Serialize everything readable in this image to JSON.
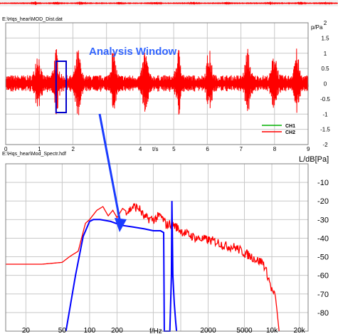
{
  "chart_data": [
    {
      "type": "line",
      "file_label": "E:\\Hqs_hear\\MOD_Dist.dat",
      "ylabel": "p/Pa",
      "xlabel": "t/s",
      "annotation": "Analysis Window",
      "xlim": [
        0,
        9
      ],
      "ylim": [
        -2,
        2
      ],
      "x_ticks": [
        "0",
        "1",
        "2",
        "4",
        "5",
        "6",
        "7",
        "8",
        "9"
      ],
      "y_ticks": [
        "2",
        "1.5",
        "1",
        "0.5",
        "0",
        "-0.5",
        "-1",
        "-1.5",
        "-2"
      ],
      "window": [
        1.5,
        1.8
      ],
      "grid": true,
      "legend_placement": "bottom-right",
      "series": [
        {
          "name": "CH1",
          "color": "#00b000",
          "bursts": [
            0.95,
            1.5,
            2.15,
            3.2,
            4.15,
            5.15,
            6.05,
            7.2,
            8.0,
            8.65
          ]
        },
        {
          "name": "CH2",
          "color": "#ff0000",
          "bursts": [
            0.95,
            1.5,
            2.15,
            3.2,
            4.15,
            5.15,
            6.05,
            7.2,
            8.0,
            8.65
          ]
        }
      ]
    },
    {
      "type": "line",
      "file_label": "E:\\Hqs_hear\\Mod_Spectr.hdf",
      "ylabel": "L/dB[Pa]",
      "xlabel": "f/Hz",
      "xscale": "log",
      "xlim": [
        12,
        25000
      ],
      "ylim": [
        -90,
        0
      ],
      "x_ticks": [
        "20",
        "50",
        "100",
        "200",
        "2000",
        "5000",
        "10k",
        "20k"
      ],
      "y_ticks": [
        "-10",
        "-20",
        "-30",
        "-40",
        "-50",
        "-60",
        "-70",
        "-80"
      ],
      "grid": true,
      "series": [
        {
          "color": "#ff0000",
          "x": [
            12,
            20,
            30,
            50,
            60,
            75,
            90,
            100,
            120,
            140,
            160,
            180,
            200,
            230,
            260,
            300,
            350,
            400,
            500,
            600,
            700,
            800,
            1000,
            1200,
            1500,
            2000,
            2500,
            3000,
            4000,
            5000,
            6000,
            7000,
            8000,
            9000,
            10000,
            11000,
            12000
          ],
          "y": [
            -54,
            -54,
            -54,
            -53,
            -50,
            -47,
            -32,
            -30,
            -25,
            -23,
            -28,
            -25,
            -29,
            -24,
            -26,
            -23,
            -24,
            -29,
            -30,
            -28,
            -33,
            -32,
            -36,
            -38,
            -40,
            -41,
            -42,
            -44,
            -45,
            -48,
            -50,
            -52,
            -53,
            -60,
            -68,
            -72,
            -90
          ]
        },
        {
          "color": "#0000ff",
          "x": [
            55,
            70,
            85,
            100,
            110,
            130,
            170,
            220,
            300,
            400,
            500,
            600,
            650,
            660,
            680,
            700,
            760,
            790,
            800,
            810,
            820,
            850,
            880,
            900
          ],
          "y": [
            -90,
            -60,
            -39,
            -31,
            -30,
            -30,
            -31,
            -33,
            -34,
            -35,
            -36,
            -36,
            -37,
            -90,
            -90,
            -90,
            -90,
            -60,
            -20,
            -40,
            -60,
            -75,
            -85,
            -90
          ]
        }
      ]
    }
  ]
}
